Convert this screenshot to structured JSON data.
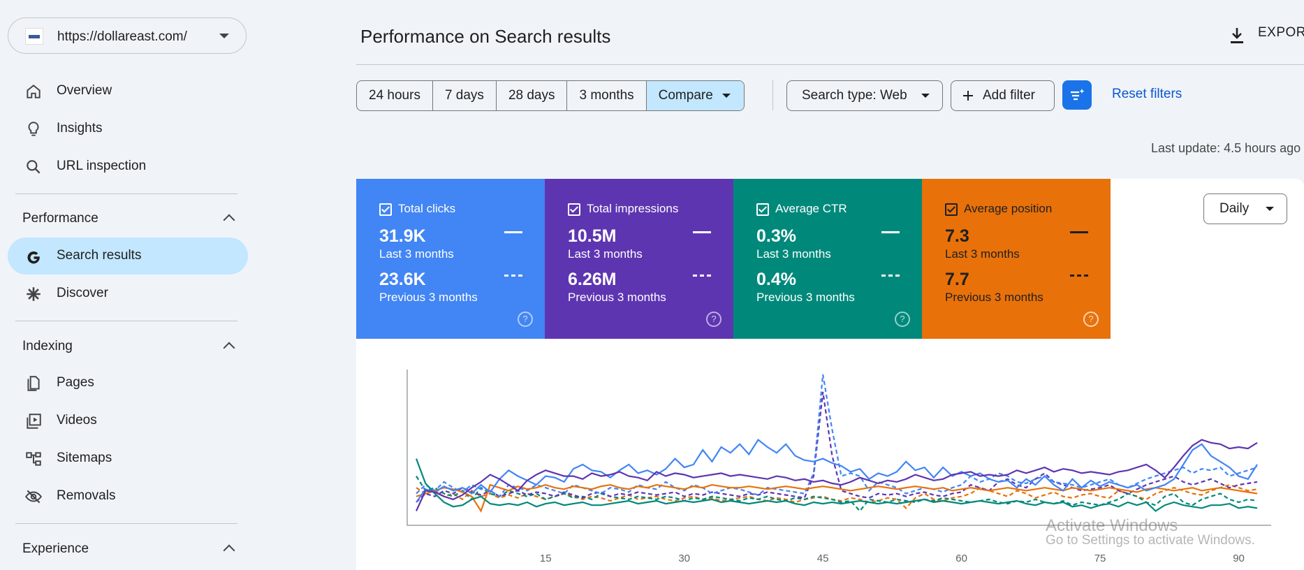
{
  "property": {
    "url": "https://dollareast.com/"
  },
  "sidebar": {
    "top_items": [
      {
        "label": "Overview",
        "icon": "home-icon"
      },
      {
        "label": "Insights",
        "icon": "lightbulb-icon"
      },
      {
        "label": "URL inspection",
        "icon": "search-icon"
      }
    ],
    "performance": {
      "heading": "Performance",
      "items": [
        {
          "label": "Search results",
          "icon": "google-g-icon",
          "active": true
        },
        {
          "label": "Discover",
          "icon": "asterisk-icon"
        }
      ]
    },
    "indexing": {
      "heading": "Indexing",
      "items": [
        {
          "label": "Pages",
          "icon": "pages-icon"
        },
        {
          "label": "Videos",
          "icon": "video-icon"
        },
        {
          "label": "Sitemaps",
          "icon": "sitemap-icon"
        },
        {
          "label": "Removals",
          "icon": "eye-off-icon"
        }
      ]
    },
    "experience": {
      "heading": "Experience"
    }
  },
  "header": {
    "title": "Performance on Search results",
    "export_label": "EXPORT"
  },
  "toolbar": {
    "ranges": [
      "24 hours",
      "7 days",
      "28 days",
      "3 months"
    ],
    "compare_label": "Compare",
    "search_type": "Search type: Web",
    "add_filter": "Add filter",
    "reset_filters": "Reset filters"
  },
  "last_update": "Last update: 4.5 hours ago",
  "metrics": [
    {
      "title": "Total clicks",
      "current": "31.9K",
      "current_period": "Last 3 months",
      "previous": "23.6K",
      "previous_period": "Previous 3 months",
      "color": "#4285f4"
    },
    {
      "title": "Total impressions",
      "current": "10.5M",
      "current_period": "Last 3 months",
      "previous": "6.26M",
      "previous_period": "Previous 3 months",
      "color": "#5e35b1"
    },
    {
      "title": "Average CTR",
      "current": "0.3%",
      "current_period": "Last 3 months",
      "previous": "0.4%",
      "previous_period": "Previous 3 months",
      "color": "#00897b"
    },
    {
      "title": "Average position",
      "current": "7.3",
      "current_period": "Last 3 months",
      "previous": "7.7",
      "previous_period": "Previous 3 months",
      "color": "#e8710a"
    }
  ],
  "granularity": "Daily",
  "chart_data": {
    "type": "line",
    "x_ticks": [
      "15",
      "30",
      "45",
      "60",
      "75",
      "90"
    ],
    "series": [
      {
        "values": [
          0.12,
          0.21,
          0.19,
          0.23,
          0.2,
          0.22,
          0.18,
          0.24,
          0.19,
          0.28,
          0.34,
          0.3,
          0.27,
          0.24,
          0.3,
          0.29,
          0.26,
          0.35,
          0.38,
          0.34,
          0.33,
          0.29,
          0.34,
          0.38,
          0.32,
          0.34,
          0.31,
          0.35,
          0.42,
          0.36,
          0.38,
          0.48,
          0.4,
          0.5,
          0.46,
          0.52,
          0.45,
          0.55,
          0.5,
          0.46,
          0.52,
          0.44,
          0.41,
          0.4,
          0.42,
          0.39,
          0.37,
          0.33,
          0.35,
          0.28,
          0.32,
          0.3,
          0.33,
          0.4,
          0.34,
          0.36,
          0.29,
          0.36,
          0.3,
          0.33,
          0.3,
          0.32,
          0.28,
          0.26,
          0.27,
          0.22,
          0.28,
          0.24,
          0.3,
          0.24,
          0.2,
          0.28,
          0.22,
          0.27,
          0.23,
          0.26,
          0.24,
          0.22,
          0.24,
          0.2,
          0.22,
          0.24,
          0.28,
          0.38,
          0.48,
          0.52,
          0.44,
          0.4,
          0.36,
          0.3,
          0.28,
          0.38
        ]
      },
      {
        "values": [
          0.06,
          0.2,
          0.19,
          0.16,
          0.14,
          0.17,
          0.22,
          0.26,
          0.31,
          0.28,
          0.24,
          0.2,
          0.27,
          0.31,
          0.34,
          0.32,
          0.3,
          0.3,
          0.28,
          0.32,
          0.3,
          0.31,
          0.33,
          0.3,
          0.29,
          0.27,
          0.33,
          0.3,
          0.32,
          0.31,
          0.29,
          0.3,
          0.31,
          0.32,
          0.3,
          0.31,
          0.3,
          0.29,
          0.28,
          0.3,
          0.29,
          0.27,
          0.28,
          0.26,
          0.27,
          0.25,
          0.24,
          0.26,
          0.29,
          0.27,
          0.25,
          0.27,
          0.26,
          0.28,
          0.31,
          0.29,
          0.27,
          0.28,
          0.31,
          0.32,
          0.33,
          0.3,
          0.31,
          0.3,
          0.31,
          0.34,
          0.32,
          0.34,
          0.36,
          0.33,
          0.35,
          0.34,
          0.32,
          0.33,
          0.32,
          0.31,
          0.33,
          0.34,
          0.36,
          0.38,
          0.34,
          0.29,
          0.36,
          0.44,
          0.51,
          0.55,
          0.53,
          0.52,
          0.49,
          0.5,
          0.49,
          0.53
        ]
      },
      {
        "values": [
          0.42,
          0.25,
          0.18,
          0.12,
          0.09,
          0.1,
          0.14,
          0.16,
          0.11,
          0.1,
          0.11,
          0.1,
          0.12,
          0.09,
          0.11,
          0.12,
          0.1,
          0.11,
          0.12,
          0.1,
          0.1,
          0.11,
          0.12,
          0.13,
          0.11,
          0.12,
          0.13,
          0.11,
          0.12,
          0.13,
          0.12,
          0.13,
          0.14,
          0.12,
          0.13,
          0.12,
          0.11,
          0.12,
          0.13,
          0.12,
          0.13,
          0.11,
          0.1,
          0.12,
          0.11,
          0.12,
          0.11,
          0.12,
          0.13,
          0.12,
          0.11,
          0.12,
          0.11,
          0.12,
          0.13,
          0.14,
          0.12,
          0.13,
          0.12,
          0.11,
          0.12,
          0.13,
          0.12,
          0.11,
          0.12,
          0.13,
          0.11,
          0.1,
          0.12,
          0.11,
          0.12,
          0.09,
          0.1,
          0.08,
          0.1,
          0.11,
          0.09,
          0.12,
          0.1,
          0.12,
          0.06,
          0.1,
          0.12,
          0.1,
          0.09,
          0.08,
          0.1,
          0.1,
          0.11,
          0.08,
          0.09,
          0.08
        ]
      },
      {
        "values": [
          0.16,
          0.18,
          0.2,
          0.22,
          0.21,
          0.19,
          0.16,
          0.06,
          0.24,
          0.22,
          0.2,
          0.23,
          0.21,
          0.22,
          0.24,
          0.22,
          0.21,
          0.23,
          0.22,
          0.21,
          0.23,
          0.24,
          0.22,
          0.21,
          0.23,
          0.22,
          0.24,
          0.23,
          0.22,
          0.21,
          0.23,
          0.22,
          0.24,
          0.23,
          0.22,
          0.22,
          0.23,
          0.22,
          0.21,
          0.22,
          0.23,
          0.22,
          0.21,
          0.22,
          0.23,
          0.22,
          0.21,
          0.2,
          0.21,
          0.22,
          0.23,
          0.22,
          0.21,
          0.22,
          0.23,
          0.22,
          0.21,
          0.22,
          0.2,
          0.21,
          0.22,
          0.21,
          0.2,
          0.21,
          0.22,
          0.21,
          0.2,
          0.21,
          0.22,
          0.21,
          0.2,
          0.22,
          0.21,
          0.2,
          0.21,
          0.22,
          0.21,
          0.2,
          0.19,
          0.21,
          0.22,
          0.21,
          0.2,
          0.21,
          0.22,
          0.2,
          0.21,
          0.22,
          0.21,
          0.2,
          0.19,
          0.18
        ]
      },
      {
        "values": [
          0.18,
          0.24,
          0.2,
          0.26,
          0.22,
          0.19,
          0.24,
          0.21,
          0.2,
          0.16,
          0.24,
          0.22,
          0.2,
          0.24,
          0.22,
          0.2,
          0.18,
          0.24,
          0.22,
          0.2,
          0.18,
          0.22,
          0.21,
          0.19,
          0.24,
          0.22,
          0.21,
          0.26,
          0.22,
          0.2,
          0.24,
          0.22,
          0.18,
          0.2,
          0.22,
          0.21,
          0.19,
          0.17,
          0.22,
          0.21,
          0.2,
          0.19,
          0.18,
          0.32,
          1.0,
          0.62,
          0.3,
          0.32,
          0.3,
          0.2,
          0.26,
          0.24,
          0.22,
          0.18,
          0.2,
          0.22,
          0.21,
          0.19,
          0.22,
          0.24,
          0.3,
          0.26,
          0.28,
          0.32,
          0.3,
          0.26,
          0.25,
          0.28,
          0.3,
          0.26,
          0.25,
          0.24,
          0.22,
          0.24,
          0.26,
          0.28,
          0.24,
          0.22,
          0.25,
          0.28,
          0.3,
          0.32,
          0.34,
          0.36,
          0.32,
          0.35,
          0.34,
          0.36,
          0.3,
          0.32,
          0.34,
          0.36
        ]
      },
      {
        "values": [
          0.12,
          0.18,
          0.16,
          0.2,
          0.18,
          0.22,
          0.19,
          0.17,
          0.2,
          0.16,
          0.18,
          0.2,
          0.17,
          0.19,
          0.18,
          0.16,
          0.19,
          0.17,
          0.15,
          0.18,
          0.19,
          0.16,
          0.18,
          0.17,
          0.19,
          0.18,
          0.17,
          0.18,
          0.19,
          0.16,
          0.18,
          0.17,
          0.19,
          0.18,
          0.17,
          0.16,
          0.18,
          0.17,
          0.19,
          0.18,
          0.17,
          0.16,
          0.15,
          0.3,
          0.88,
          0.44,
          0.2,
          0.18,
          0.16,
          0.15,
          0.18,
          0.17,
          0.18,
          0.16,
          0.18,
          0.19,
          0.17,
          0.16,
          0.18,
          0.19,
          0.24,
          0.22,
          0.2,
          0.26,
          0.28,
          0.24,
          0.22,
          0.28,
          0.32,
          0.26,
          0.24,
          0.22,
          0.2,
          0.21,
          0.22,
          0.24,
          0.2,
          0.18,
          0.21,
          0.24,
          0.26,
          0.28,
          0.3,
          0.26,
          0.24,
          0.26,
          0.28,
          0.25,
          0.22,
          0.24,
          0.25,
          0.26
        ]
      },
      {
        "values": [
          0.3,
          0.2,
          0.22,
          0.18,
          0.16,
          0.2,
          0.14,
          0.22,
          0.18,
          0.16,
          0.2,
          0.18,
          0.16,
          0.18,
          0.14,
          0.16,
          0.18,
          0.15,
          0.16,
          0.14,
          0.18,
          0.16,
          0.15,
          0.14,
          0.16,
          0.15,
          0.14,
          0.16,
          0.15,
          0.13,
          0.15,
          0.14,
          0.16,
          0.15,
          0.14,
          0.13,
          0.15,
          0.14,
          0.16,
          0.14,
          0.13,
          0.15,
          0.14,
          0.16,
          0.15,
          0.14,
          0.12,
          0.13,
          0.06,
          0.14,
          0.13,
          0.12,
          0.14,
          0.13,
          0.12,
          0.14,
          0.13,
          0.15,
          0.14,
          0.13,
          0.12,
          0.13,
          0.14,
          0.12,
          0.11,
          0.13,
          0.12,
          0.14,
          0.12,
          0.11,
          0.13,
          0.1,
          0.12,
          0.11,
          0.1,
          0.12,
          0.14,
          0.18,
          0.16,
          0.12,
          0.1,
          0.16,
          0.18,
          0.12,
          0.1,
          0.14,
          0.16,
          0.18,
          0.14,
          0.12,
          0.14,
          0.13
        ]
      },
      {
        "values": [
          0.22,
          0.18,
          0.2,
          0.16,
          0.18,
          0.14,
          0.2,
          0.16,
          0.18,
          0.15,
          0.17,
          0.15,
          0.18,
          0.16,
          0.14,
          0.16,
          0.18,
          0.16,
          0.14,
          0.16,
          0.15,
          0.13,
          0.15,
          0.17,
          0.14,
          0.15,
          0.16,
          0.14,
          0.13,
          0.15,
          0.16,
          0.14,
          0.15,
          0.13,
          0.14,
          0.15,
          0.16,
          0.14,
          0.13,
          0.15,
          0.14,
          0.12,
          0.14,
          0.15,
          0.16,
          0.14,
          0.13,
          0.15,
          0.14,
          0.12,
          0.13,
          0.15,
          0.14,
          0.08,
          0.15,
          0.18,
          0.14,
          0.13,
          0.15,
          0.16,
          0.18,
          0.22,
          0.2,
          0.18,
          0.16,
          0.2,
          0.18,
          0.15,
          0.17,
          0.19,
          0.16,
          0.15,
          0.17,
          0.18,
          0.16,
          0.15,
          0.2,
          0.18,
          0.16,
          0.14,
          0.18,
          0.2,
          0.22,
          0.2,
          0.18,
          0.17,
          0.2,
          0.22,
          0.24,
          0.22,
          0.2,
          0.21
        ]
      }
    ]
  },
  "watermark": {
    "line1": "Activate Windows",
    "line2": "Go to Settings to activate Windows."
  }
}
